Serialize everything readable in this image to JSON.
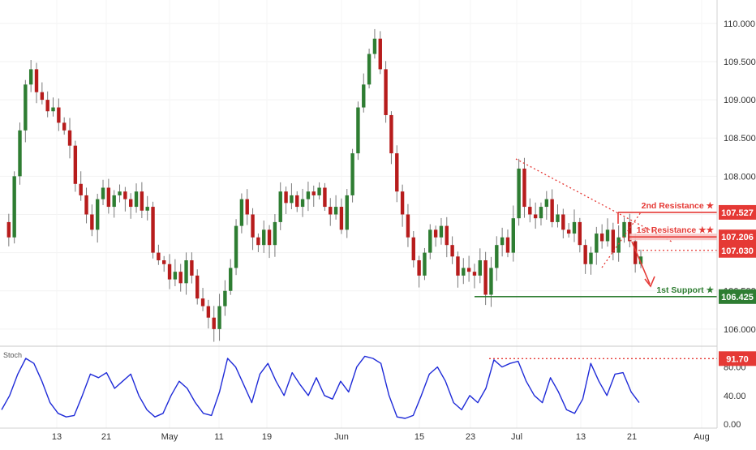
{
  "chart_data": [
    {
      "type": "candlestick",
      "title": "",
      "x_ticks": [
        "13",
        "21",
        "May",
        "11",
        "19",
        "Jun",
        "15",
        "23",
        "Jul",
        "13",
        "21",
        "Aug"
      ],
      "y_ticks": [
        "110.000",
        "109.500",
        "109.000",
        "108.500",
        "108.000",
        "107.500",
        "107.000",
        "106.500",
        "106.000"
      ],
      "ylim": [
        105.85,
        110.2
      ],
      "colors": {
        "up": "#2e7d32",
        "down": "#b71c1c",
        "resistance": "#e53935",
        "support": "#2e7d32"
      },
      "series_ohlc": [
        107.4,
        107.2,
        108.0,
        108.6,
        109.2,
        109.4,
        109.1,
        109.0,
        108.85,
        108.9,
        108.7,
        108.6,
        108.4,
        107.9,
        107.75,
        107.5,
        107.3,
        107.7,
        107.85,
        107.6,
        107.75,
        107.8,
        107.7,
        107.6,
        107.8,
        107.55,
        107.6,
        107.0,
        106.9,
        106.85,
        106.65,
        106.75,
        106.6,
        106.9,
        106.7,
        106.4,
        106.3,
        106.15,
        106.0,
        106.3,
        106.5,
        106.8,
        107.35,
        107.7,
        107.5,
        107.2,
        107.1,
        107.3,
        107.1,
        107.4,
        107.8,
        107.65,
        107.75,
        107.6,
        107.7,
        107.8,
        107.75,
        107.85,
        107.6,
        107.5,
        107.6,
        107.3,
        107.75,
        108.3,
        108.9,
        109.2,
        109.6,
        109.8,
        109.4,
        108.8,
        108.3,
        107.8,
        107.5,
        107.2,
        106.9,
        106.7,
        107.0,
        107.3,
        107.2,
        107.35,
        107.1,
        106.95,
        106.7,
        106.8,
        106.75,
        106.7,
        106.9,
        106.45,
        106.8,
        107.1,
        107.2,
        107.0,
        107.45,
        108.1,
        107.6,
        107.5,
        107.45,
        107.6,
        107.7,
        107.4,
        107.5,
        107.3,
        107.25,
        107.4,
        107.1,
        106.85,
        107.0,
        107.25,
        107.15,
        107.3,
        107.0,
        107.2,
        107.4,
        107.15,
        106.85,
        106.95
      ],
      "annotations": [
        {
          "label": "2nd Resistance ★",
          "value_label": "107.527",
          "value": 107.527,
          "kind": "resistance"
        },
        {
          "label": "1st Resistance ★★",
          "value_label": "107.206",
          "value": 107.206,
          "kind": "resistance"
        },
        {
          "label": "",
          "value_label": "107.030",
          "value": 107.03,
          "kind": "resistance"
        },
        {
          "label": "1st Support ★",
          "value_label": "106.425",
          "value": 106.425,
          "kind": "support"
        }
      ]
    },
    {
      "type": "line",
      "title": "Stoch",
      "y_ticks": [
        "80.00",
        "40.00",
        "0.00"
      ],
      "ylim": [
        0,
        100
      ],
      "level": {
        "value": 91.7,
        "label": "91.70"
      },
      "series": [
        {
          "values": [
            20,
            40,
            70,
            92,
            85,
            60,
            30,
            15,
            10,
            12,
            40,
            70,
            65,
            72,
            50,
            60,
            70,
            40,
            20,
            10,
            15,
            40,
            60,
            50,
            30,
            15,
            12,
            45,
            92,
            80,
            55,
            30,
            70,
            85,
            60,
            40,
            72,
            55,
            40,
            65,
            40,
            35,
            60,
            45,
            80,
            95,
            92,
            85,
            40,
            10,
            8,
            12,
            40,
            70,
            80,
            60,
            30,
            20,
            40,
            30,
            50,
            90,
            80,
            85,
            88,
            60,
            40,
            30,
            65,
            45,
            20,
            15,
            35,
            85,
            60,
            40,
            70,
            72,
            45,
            30
          ]
        }
      ]
    }
  ]
}
